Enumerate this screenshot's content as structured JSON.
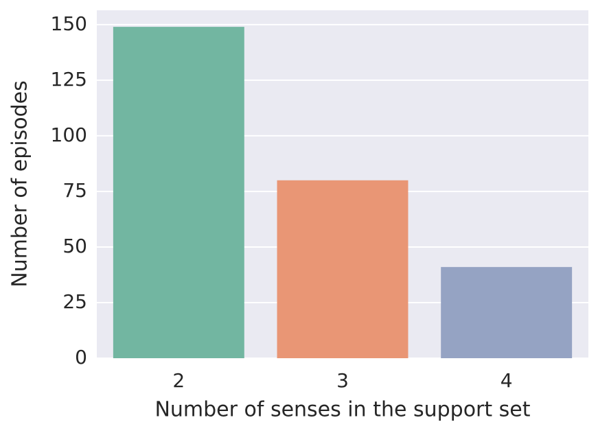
{
  "chart_data": {
    "type": "bar",
    "xlabel": "Number of senses in the support set",
    "ylabel": "Number of episodes",
    "categories": [
      "2",
      "3",
      "4"
    ],
    "values": [
      149,
      80,
      41
    ],
    "colors": [
      "#72b6a1",
      "#e99675",
      "#95a3c3"
    ],
    "ylim": [
      0,
      156.45
    ],
    "yticks": [
      0,
      25,
      50,
      75,
      100,
      125,
      150
    ],
    "grid": true
  }
}
